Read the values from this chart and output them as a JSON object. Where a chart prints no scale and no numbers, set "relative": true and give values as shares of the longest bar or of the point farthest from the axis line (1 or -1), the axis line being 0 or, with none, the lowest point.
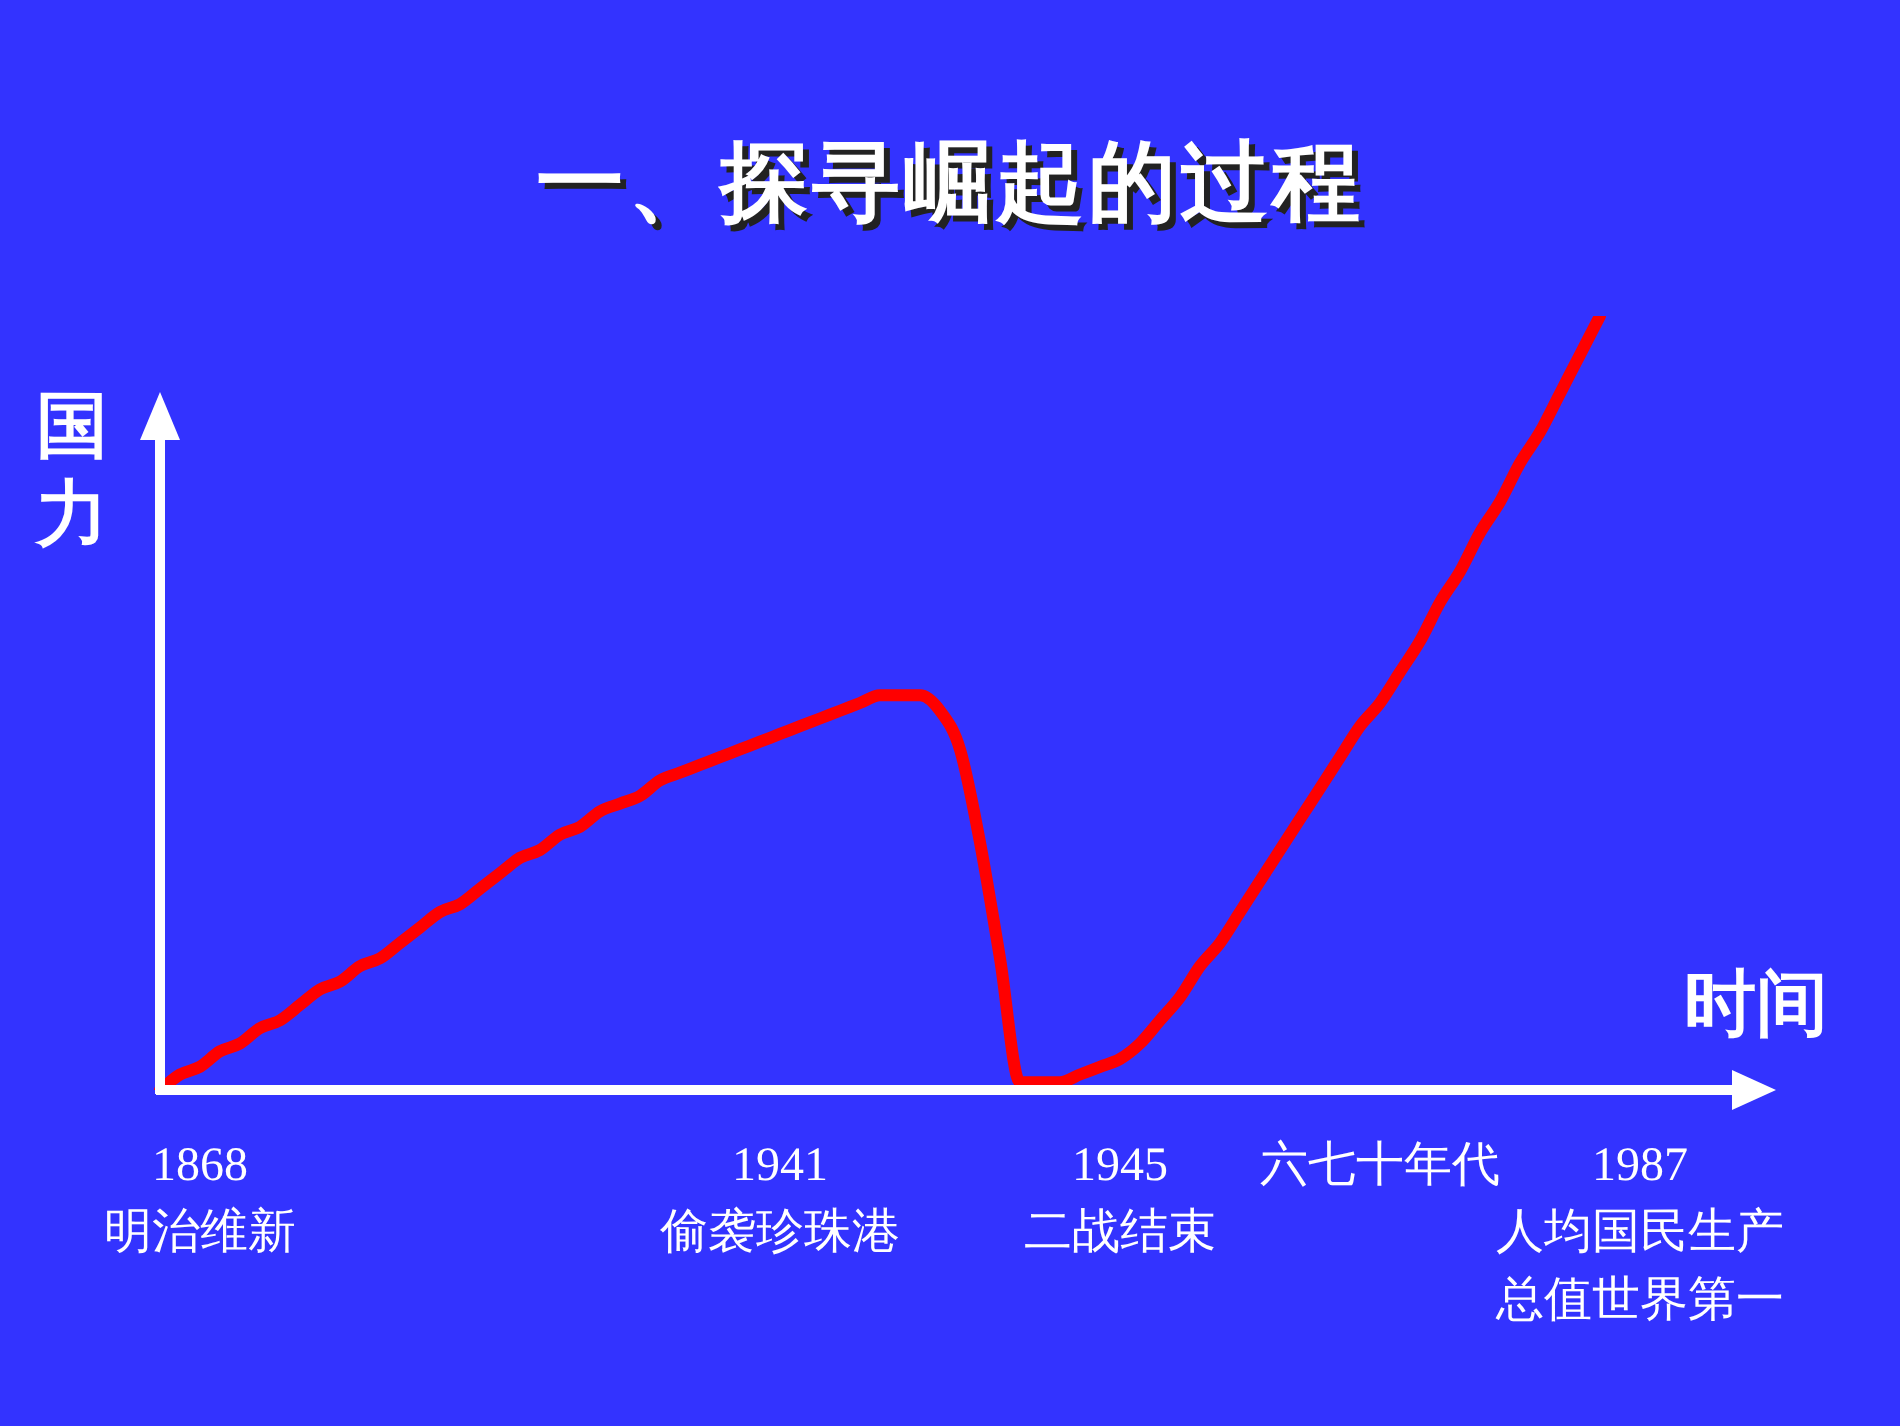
{
  "chart_data": {
    "type": "line",
    "title": "一、探寻崛起的过程",
    "xlabel": "时间",
    "ylabel": "国力",
    "relative": true,
    "tick_labels": "x",
    "grid": false,
    "legend": false,
    "marker": "none",
    "line_style": "solid",
    "categories": [
      null,
      null,
      "1868\n明治维新",
      null,
      null,
      null,
      null,
      null,
      null,
      null,
      null,
      null,
      null,
      null,
      null,
      null,
      null,
      null,
      null,
      null,
      null,
      null,
      null,
      null,
      null,
      null,
      null,
      null,
      null,
      null,
      null,
      "1941\n偷袭珍珠港",
      null,
      null,
      null,
      null,
      null,
      null,
      null,
      null,
      null,
      null,
      null,
      null,
      null,
      null,
      null,
      null,
      "1945\n二战结束",
      null,
      null,
      null,
      null,
      null,
      null,
      null,
      null,
      null,
      null,
      null,
      null,
      "六七十年代",
      null,
      null,
      null,
      null,
      null,
      null,
      null,
      null,
      null,
      null,
      null,
      null,
      "1987\n人均国民生产总值世界第一",
      null,
      null,
      null,
      null,
      null
    ],
    "series": [
      {
        "color": "#ff0000",
        "values": [
          0,
          0.02,
          0.03,
          0.05,
          0.06,
          0.08,
          0.09,
          0.11,
          0.13,
          0.14,
          0.16,
          0.17,
          0.19,
          0.21,
          0.23,
          0.24,
          0.26,
          0.28,
          0.3,
          0.31,
          0.33,
          0.34,
          0.36,
          0.37,
          0.38,
          0.4,
          0.41,
          0.42,
          0.43,
          0.44,
          0.45,
          0.46,
          0.47,
          0.48,
          0.49,
          0.5,
          0.51,
          0.51,
          0.51,
          0.49,
          0.44,
          0.32,
          0.17,
          0.01,
          0.01,
          0.01,
          0.02,
          0.03,
          0.04,
          0.06,
          0.09,
          0.12,
          0.16,
          0.19,
          0.23,
          0.27,
          0.31,
          0.35,
          0.39,
          0.43,
          0.47,
          0.5,
          0.54,
          0.58,
          0.63,
          0.67,
          0.72,
          0.76,
          0.81,
          0.85,
          0.9,
          0.95,
          1,
          null,
          null,
          null,
          null,
          null,
          null,
          null
        ]
      }
    ]
  }
}
